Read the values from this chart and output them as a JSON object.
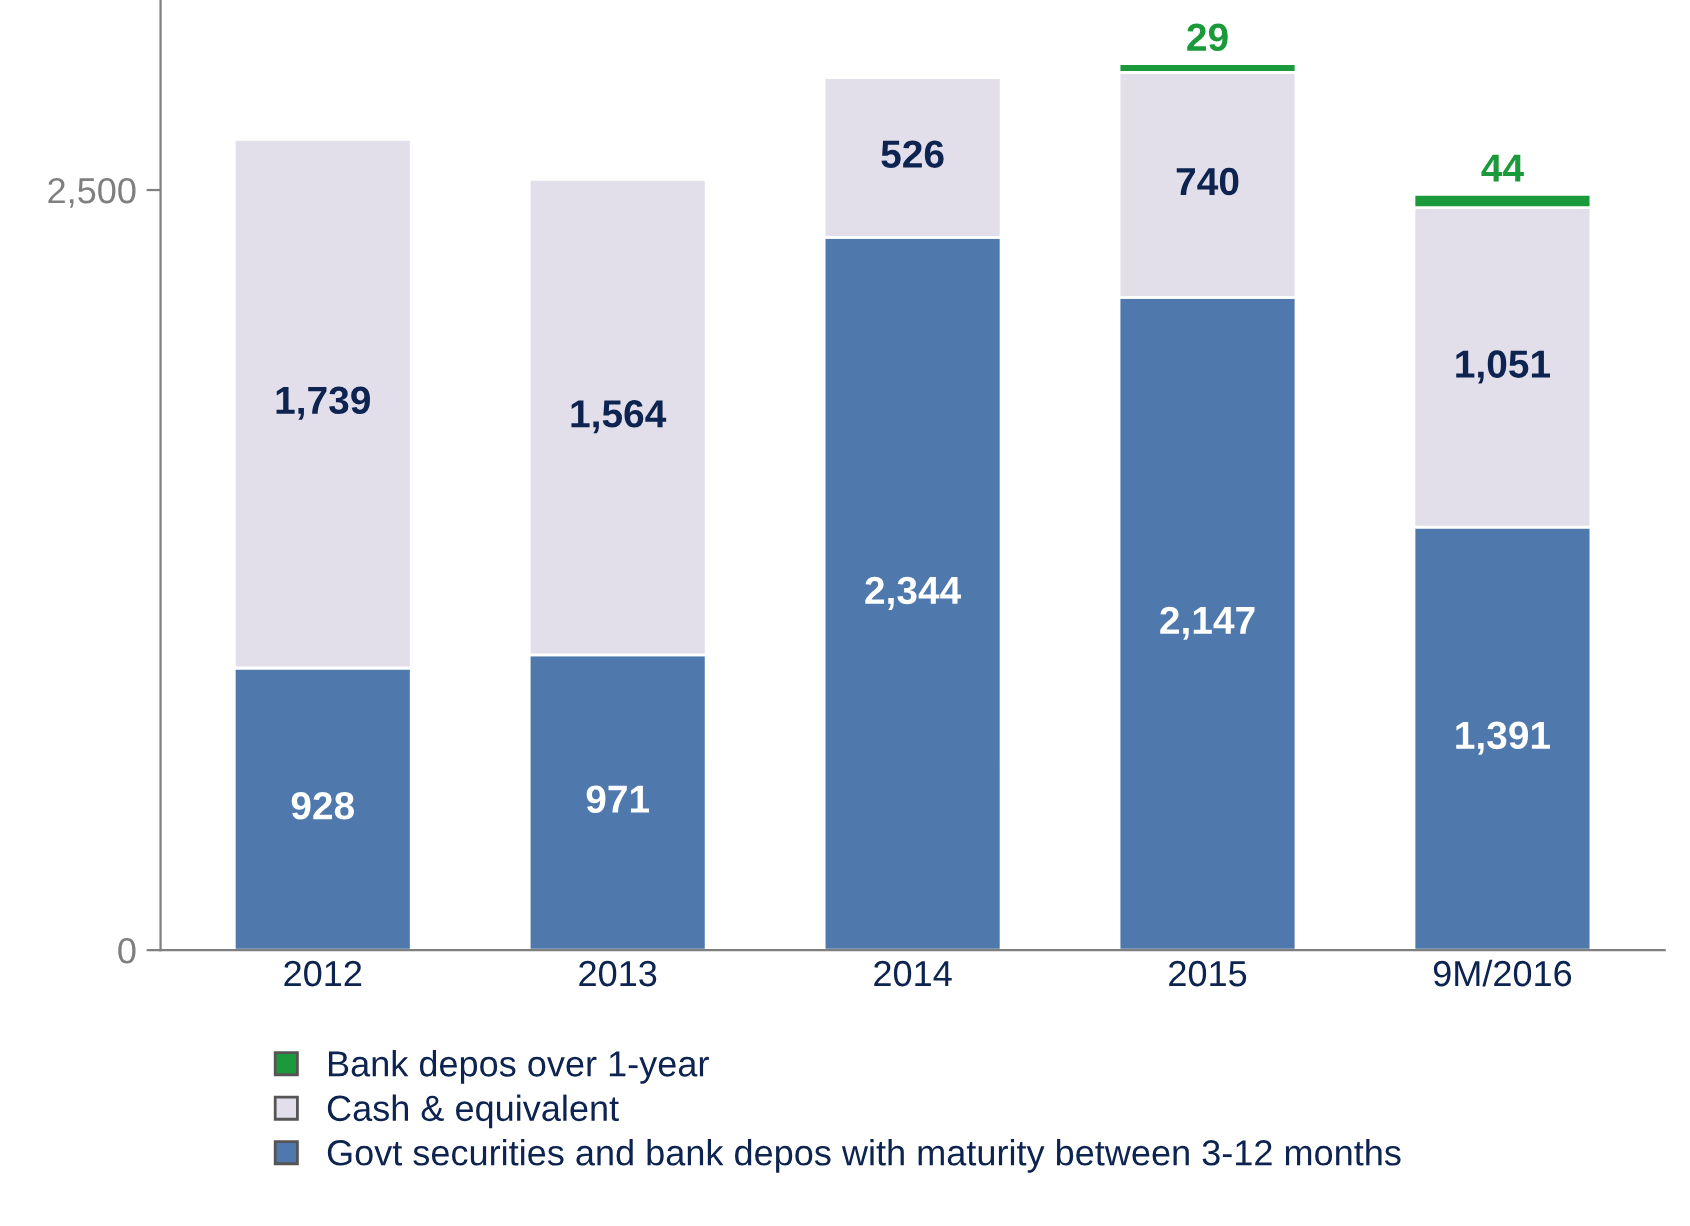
{
  "chart_data": {
    "type": "bar",
    "stacked": true,
    "categories": [
      "2012",
      "2013",
      "2014",
      "2015",
      "9M/2016"
    ],
    "series": [
      {
        "name": "Govt securities and bank depos with maturity between 3-12 months",
        "color": "#4f79ad",
        "values": [
          928,
          971,
          2344,
          2147,
          1391
        ],
        "value_labels": [
          "928",
          "971",
          "2,344",
          "2,147",
          "1,391"
        ]
      },
      {
        "name": "Cash & equivalent",
        "color": "#e2dfea",
        "values": [
          1739,
          1564,
          526,
          740,
          1051
        ],
        "value_labels": [
          "1,739",
          "1,564",
          "526",
          "740",
          "1,051"
        ]
      },
      {
        "name": "Bank depos over 1-year",
        "color": "#1a9a3a",
        "values": [
          null,
          null,
          null,
          29,
          44
        ],
        "value_labels": [
          null,
          null,
          null,
          "29",
          "44"
        ]
      }
    ],
    "ylim": [
      0,
      3125
    ],
    "yticks": [
      0,
      {
        "value": 2500,
        "label": "2,500"
      }
    ],
    "legend": "bottom",
    "grid": false
  }
}
